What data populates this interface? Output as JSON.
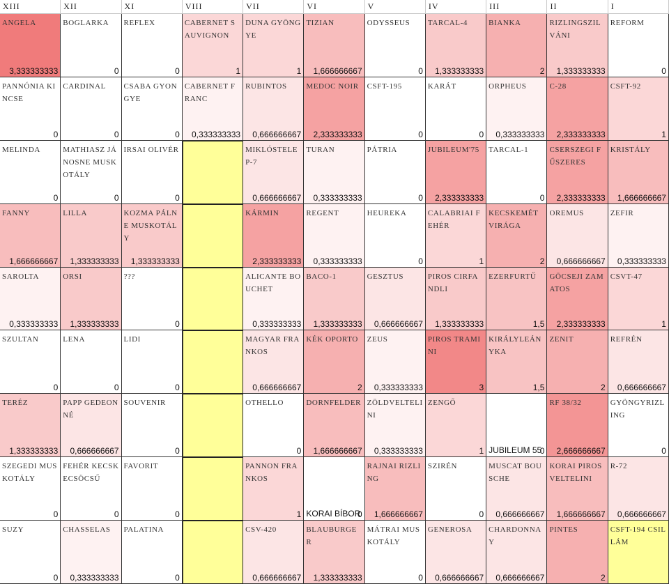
{
  "header": [
    "XIII",
    "XII",
    "XI",
    "VIII",
    "VII",
    "VI",
    "V",
    "IV",
    "III",
    "II",
    "I"
  ],
  "yellow": "#ffff99",
  "rows": [
    [
      {
        "name": "ANGELA",
        "value": "3,333333333"
      },
      {
        "name": "BOGLARKA",
        "value": "0"
      },
      {
        "name": "REFLEX",
        "value": "0"
      },
      {
        "name": "CABERNET SAUVIGNON",
        "value": "1"
      },
      {
        "name": "DUNA GYÖNGYE",
        "value": "1"
      },
      {
        "name": "TIZIAN",
        "value": "1,666666667"
      },
      {
        "name": "ODYSSEUS",
        "value": "0"
      },
      {
        "name": "TARCAL-4",
        "value": "1,333333333"
      },
      {
        "name": "BIANKA",
        "value": "2"
      },
      {
        "name": "RIZLINGSZILVÁNI",
        "value": "1,333333333"
      },
      {
        "name": "REFORM",
        "value": "0"
      }
    ],
    [
      {
        "name": "PANNÓNIA KINCSE",
        "value": "0"
      },
      {
        "name": "CARDINAL",
        "value": "0"
      },
      {
        "name": "CSABA GYONGYE",
        "value": "0"
      },
      {
        "name": "CABERNET FRANC",
        "value": "0,333333333"
      },
      {
        "name": "RUBINTOS",
        "value": "0,666666667"
      },
      {
        "name": "MEDOC NOIR",
        "value": "2,333333333"
      },
      {
        "name": "CSFT-195",
        "value": "0"
      },
      {
        "name": "KARÁT",
        "value": "0"
      },
      {
        "name": "ORPHEUS",
        "value": "0,333333333"
      },
      {
        "name": "C-28",
        "value": "2,333333333"
      },
      {
        "name": "CSFT-92",
        "value": "1"
      }
    ],
    [
      {
        "name": "MELINDA",
        "value": "0"
      },
      {
        "name": "MATHIASZ JÁNOSNE MUSKOTÁLY",
        "value": "0"
      },
      {
        "name": "IRSAI OLIVÉR",
        "value": "0"
      },
      {
        "empty": true
      },
      {
        "name": "MIKLÓSTELEP-7",
        "value": "0,666666667"
      },
      {
        "name": "TURAN",
        "value": "0,333333333"
      },
      {
        "name": "PÁTRIA",
        "value": "0"
      },
      {
        "name": "JUBILEUM'75",
        "value": "2,333333333"
      },
      {
        "name": "TARCAL-1",
        "value": "0"
      },
      {
        "name": "CSERSZEGI FŰSZERES",
        "value": "2,333333333"
      },
      {
        "name": "KRISTÁLY",
        "value": "1,666666667"
      }
    ],
    [
      {
        "name": "FANNY",
        "value": "1,666666667"
      },
      {
        "name": "LILLA",
        "value": "1,333333333"
      },
      {
        "name": "KOZMA PÁLNE MUSKOTÁLY",
        "value": "1,333333333"
      },
      {
        "empty": true
      },
      {
        "name": "KÁRMIN",
        "value": "2,333333333"
      },
      {
        "name": "REGENT",
        "value": "0,333333333"
      },
      {
        "name": "HEUREKA",
        "value": "0"
      },
      {
        "name": "CALABRIAI FEHÉR",
        "value": "1"
      },
      {
        "name": "KECSKEMÉT VIRÁGA",
        "value": "2"
      },
      {
        "name": "OREMUS",
        "value": "0,666666667"
      },
      {
        "name": "ZEFIR",
        "value": "0,333333333"
      }
    ],
    [
      {
        "name": "SAROLTA",
        "value": "0,333333333"
      },
      {
        "name": "ORSI",
        "value": "1,333333333"
      },
      {
        "name": "???",
        "value": "0"
      },
      {
        "empty": true
      },
      {
        "name": "ALICANTE BOUCHET",
        "value": "0,333333333"
      },
      {
        "name": "BACO-1",
        "value": "1,333333333"
      },
      {
        "name": "GESZTUS",
        "value": "0,666666667"
      },
      {
        "name": "PIROS CIRFANDLI",
        "value": "1,333333333"
      },
      {
        "name": "EZERFURTŰ",
        "value": "1,5"
      },
      {
        "name": "GÖCSEJI ZAMATOS",
        "value": "2,333333333"
      },
      {
        "name": "CSVT-47",
        "value": "1"
      }
    ],
    [
      {
        "name": "SZULTAN",
        "value": "0"
      },
      {
        "name": "LENA",
        "value": "0"
      },
      {
        "name": "LIDI",
        "value": "0"
      },
      {
        "empty": true
      },
      {
        "name": "MAGYAR FRANKOS",
        "value": "0,666666667"
      },
      {
        "name": "KÉK OPORTO",
        "value": "2"
      },
      {
        "name": "ZEUS",
        "value": "0,333333333"
      },
      {
        "name": "PIROS TRAMINI",
        "value": "3"
      },
      {
        "name": "KIRÁLYLEÁNYKA",
        "value": "1,5"
      },
      {
        "name": "ZENIT",
        "value": "2"
      },
      {
        "name": "REFRÉN",
        "value": "0,666666667"
      }
    ],
    [
      {
        "name": "TERÉZ",
        "value": "1,333333333"
      },
      {
        "name": "PAPP GEDEONNÉ",
        "value": "0,666666667"
      },
      {
        "name": "SOUVENIR",
        "value": "0"
      },
      {
        "empty": true
      },
      {
        "name": "OTHELLO",
        "value": "0"
      },
      {
        "name": "DORNFELDER",
        "value": "1,666666667"
      },
      {
        "name": "ZÖLDVELTELINI",
        "value": "0,333333333"
      },
      {
        "name": "ZENGŐ",
        "value": "1"
      },
      {
        "bottom_text": "JUBILEUM 55",
        "value": "0"
      },
      {
        "name": "RF 38/32",
        "value": "2,666666667"
      },
      {
        "name": "GYÖNGYRIZLING",
        "value": "0"
      }
    ],
    [
      {
        "name": "SZEGEDI MUSKOTÁLY",
        "value": "0"
      },
      {
        "name": "FEHÉR KECSKECSÖCSŰ",
        "value": "0"
      },
      {
        "name": "FAVORIT",
        "value": "0"
      },
      {
        "empty": true
      },
      {
        "name": "PANNON FRANKOS",
        "value": "1"
      },
      {
        "bottom_text": "KORAI BÍBOR",
        "value": "0"
      },
      {
        "name": "RAJNAI RIZLING",
        "value": "1,666666667"
      },
      {
        "name": "SZIRÉN",
        "value": "0"
      },
      {
        "name": "MUSCAT BOUSCHE",
        "value": "0,666666667"
      },
      {
        "name": "KORAI PIROS VELTELINI",
        "value": "1,666666667"
      },
      {
        "name": "R-72",
        "value": "0,666666667"
      }
    ],
    [
      {
        "name": "SUZY",
        "value": "0"
      },
      {
        "name": "CHASSELAS",
        "value": "0,333333333"
      },
      {
        "name": "PALATINA",
        "value": "0"
      },
      {
        "empty": true
      },
      {
        "name": "CSV-420",
        "value": "0,666666667"
      },
      {
        "name": "BLAUBURGER",
        "value": "1,333333333"
      },
      {
        "name": "MÁTRAI MUSKOTÁLY",
        "value": "0"
      },
      {
        "name": "GENEROSA",
        "value": "0,666666667"
      },
      {
        "name": "CHARDONNAY",
        "value": "0,666666667"
      },
      {
        "name": "PINTES",
        "value": "2"
      },
      {
        "name": "CSFT-194 CSILLÁM",
        "highlight": true
      }
    ]
  ]
}
